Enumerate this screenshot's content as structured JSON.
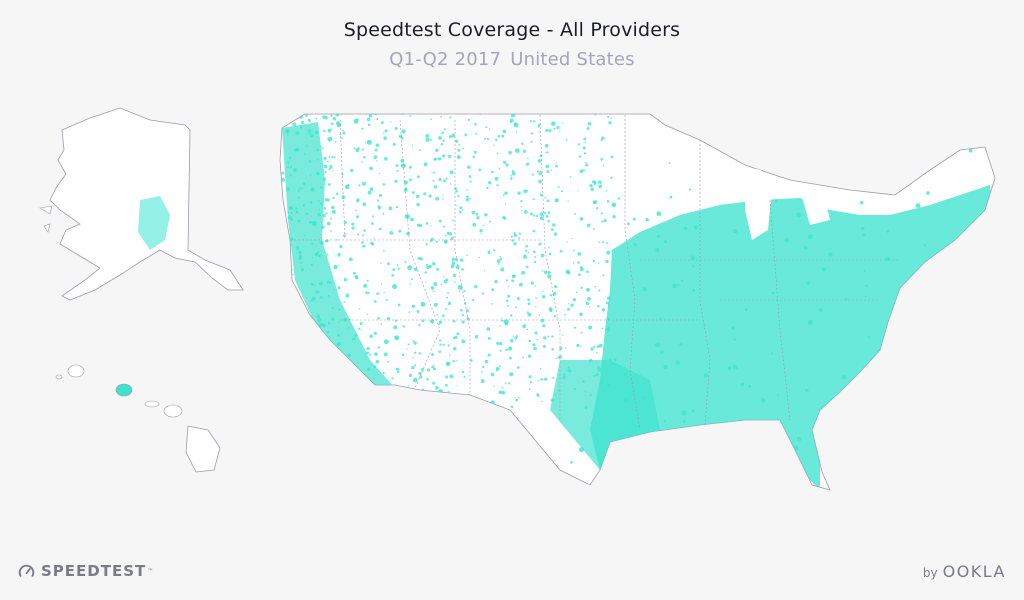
{
  "header": {
    "title": "Speedtest Coverage - All Providers",
    "period": "Q1-Q2 2017",
    "region": "United States"
  },
  "map": {
    "land_color": "#ffffff",
    "border_color": "#9c9ca8",
    "coverage_color": "#3ee3cf",
    "regions": [
      "contiguous-us",
      "alaska",
      "hawaii"
    ]
  },
  "footer": {
    "left_logo": "SPEEDTEST",
    "right_by": "by",
    "right_logo": "OOKLA"
  }
}
